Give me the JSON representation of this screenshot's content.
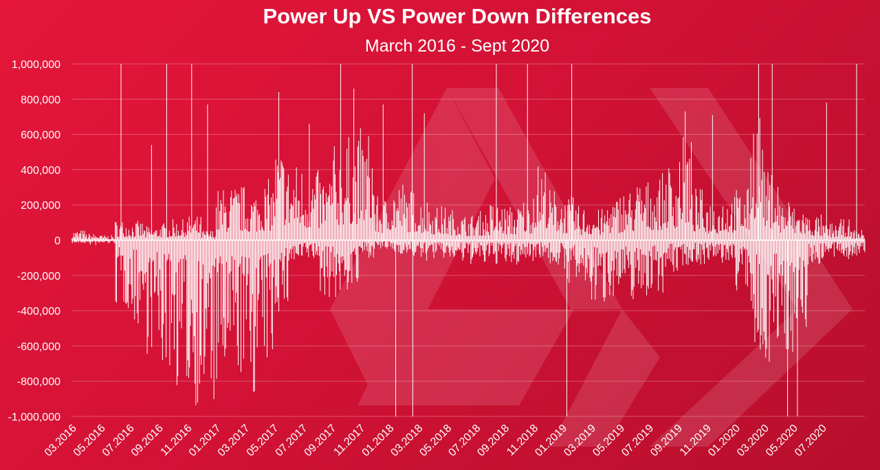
{
  "chart_data": {
    "type": "bar",
    "title": "Power Up VS Power Down Differences",
    "subtitle": "March 2016 - Sept 2020",
    "xlabel": "",
    "ylabel": "",
    "ylim": [
      -1000000,
      1000000
    ],
    "yticks": [
      "1,000,000",
      "800,000",
      "600,000",
      "400,000",
      "200,000",
      "0",
      "-200,000",
      "-400,000",
      "-600,000",
      "-800,000",
      "-1,000,000"
    ],
    "ytick_values": [
      1000000,
      800000,
      600000,
      400000,
      200000,
      0,
      -200000,
      -400000,
      -600000,
      -800000,
      -1000000
    ],
    "xticks": [
      "03.2016",
      "05.2016",
      "07.2016",
      "09.2016",
      "11.2016",
      "01.2017",
      "03.2017",
      "05.2017",
      "07.2017",
      "09.2017",
      "11.2017",
      "01.2018",
      "03.2018",
      "05.2018",
      "07.2018",
      "09.2018",
      "11.2018",
      "01.2019",
      "03.2019",
      "05.2019",
      "07.2019",
      "09.2019",
      "11.2019",
      "01.2020",
      "03.2020",
      "05.2020",
      "07.2020"
    ],
    "grid": true,
    "legend": "none",
    "colors": {
      "background_start": "#e5163a",
      "background_end": "#b70f2c",
      "bars": "#ffffff",
      "text": "#ffffff"
    },
    "period_profile": [
      {
        "period": "03.2016",
        "up": 60000,
        "down": -20000
      },
      {
        "period": "04.2016",
        "up": 40000,
        "down": -30000
      },
      {
        "period": "05.2016",
        "up": 30000,
        "down": -20000
      },
      {
        "period": "06.2016",
        "up": 120000,
        "down": -400000
      },
      {
        "period": "07.2016",
        "up": 110000,
        "down": -500000
      },
      {
        "period": "08.2016",
        "up": 80000,
        "down": -650000
      },
      {
        "period": "09.2016",
        "up": 100000,
        "down": -760000
      },
      {
        "period": "10.2016",
        "up": 120000,
        "down": -850000
      },
      {
        "period": "11.2016",
        "up": 140000,
        "down": -950000
      },
      {
        "period": "12.2016",
        "up": 60000,
        "down": -1000000
      },
      {
        "period": "01.2017",
        "up": 300000,
        "down": -900000
      },
      {
        "period": "02.2017",
        "up": 320000,
        "down": -800000
      },
      {
        "period": "03.2017",
        "up": 300000,
        "down": -900000
      },
      {
        "period": "04.2017",
        "up": 350000,
        "down": -750000
      },
      {
        "period": "05.2017",
        "up": 550000,
        "down": -420000
      },
      {
        "period": "06.2017",
        "up": 450000,
        "down": -150000
      },
      {
        "period": "07.2017",
        "up": 420000,
        "down": -120000
      },
      {
        "period": "08.2017",
        "up": 400000,
        "down": -330000
      },
      {
        "period": "09.2017",
        "up": 550000,
        "down": -350000
      },
      {
        "period": "10.2017",
        "up": 600000,
        "down": -300000
      },
      {
        "period": "11.2017",
        "up": 650000,
        "down": -100000
      },
      {
        "period": "12.2017",
        "up": 250000,
        "down": -60000
      },
      {
        "period": "01.2018",
        "up": 350000,
        "down": -80000
      },
      {
        "period": "02.2018",
        "up": 300000,
        "down": -100000
      },
      {
        "period": "03.2018",
        "up": 250000,
        "down": -120000
      },
      {
        "period": "04.2018",
        "up": 200000,
        "down": -110000
      },
      {
        "period": "05.2018",
        "up": 180000,
        "down": -120000
      },
      {
        "period": "06.2018",
        "up": 150000,
        "down": -140000
      },
      {
        "period": "07.2018",
        "up": 170000,
        "down": -150000
      },
      {
        "period": "08.2018",
        "up": 220000,
        "down": -140000
      },
      {
        "period": "09.2018",
        "up": 200000,
        "down": -150000
      },
      {
        "period": "10.2018",
        "up": 250000,
        "down": -120000
      },
      {
        "period": "11.2018",
        "up": 450000,
        "down": -100000
      },
      {
        "period": "12.2018",
        "up": 300000,
        "down": -150000
      },
      {
        "period": "01.2019",
        "up": 250000,
        "down": -250000
      },
      {
        "period": "02.2019",
        "up": 200000,
        "down": -300000
      },
      {
        "period": "03.2019",
        "up": 180000,
        "down": -380000
      },
      {
        "period": "04.2019",
        "up": 250000,
        "down": -320000
      },
      {
        "period": "05.2019",
        "up": 300000,
        "down": -350000
      },
      {
        "period": "06.2019",
        "up": 350000,
        "down": -330000
      },
      {
        "period": "07.2019",
        "up": 380000,
        "down": -300000
      },
      {
        "period": "08.2019",
        "up": 450000,
        "down": -200000
      },
      {
        "period": "09.2019",
        "up": 600000,
        "down": -150000
      },
      {
        "period": "10.2019",
        "up": 300000,
        "down": -140000
      },
      {
        "period": "11.2019",
        "up": 250000,
        "down": -150000
      },
      {
        "period": "12.2019",
        "up": 280000,
        "down": -140000
      },
      {
        "period": "01.2020",
        "up": 300000,
        "down": -300000
      },
      {
        "period": "02.2020",
        "up": 800000,
        "down": -800000
      },
      {
        "period": "03.2020",
        "up": 400000,
        "down": -700000
      },
      {
        "period": "04.2020",
        "up": 250000,
        "down": -650000
      },
      {
        "period": "05.2020",
        "up": 200000,
        "down": -550000
      },
      {
        "period": "06.2020",
        "up": 150000,
        "down": -150000
      },
      {
        "period": "07.2020",
        "up": 100000,
        "down": -110000
      },
      {
        "period": "08.2020",
        "up": 120000,
        "down": -110000
      },
      {
        "period": "09.2020",
        "up": 60000,
        "down": -100000
      }
    ],
    "spikes": [
      {
        "period": "06.2016",
        "value": 1000000
      },
      {
        "period": "08.2016",
        "value": 540000
      },
      {
        "period": "09.2016",
        "value": 1000000
      },
      {
        "period": "11.2016",
        "value": 1000000
      },
      {
        "period": "12.2016",
        "value": 770000
      },
      {
        "period": "05.2017",
        "value": 840000
      },
      {
        "period": "07.2017",
        "value": 660000
      },
      {
        "period": "09.2017",
        "value": 1000000
      },
      {
        "period": "10.2017",
        "value": 860000
      },
      {
        "period": "12.2017",
        "value": 770000
      },
      {
        "period": "01.2018",
        "value": -1000000
      },
      {
        "period": "02.2018",
        "value": 1000000
      },
      {
        "period": "02.2018",
        "value": -1000000
      },
      {
        "period": "03.2018",
        "value": 720000
      },
      {
        "period": "08.2018",
        "value": 1000000
      },
      {
        "period": "10.2018",
        "value": 1000000
      },
      {
        "period": "01.2019",
        "value": -1000000
      },
      {
        "period": "01.2019",
        "value": 1000000
      },
      {
        "period": "09.2019",
        "value": 730000
      },
      {
        "period": "11.2019",
        "value": 710000
      },
      {
        "period": "02.2020",
        "value": 1000000
      },
      {
        "period": "03.2020",
        "value": 1000000
      },
      {
        "period": "04.2020",
        "value": -1000000
      },
      {
        "period": "05.2020",
        "value": -1000000
      },
      {
        "period": "07.2020",
        "value": 780000
      },
      {
        "period": "09.2020",
        "value": 1000000
      }
    ]
  }
}
